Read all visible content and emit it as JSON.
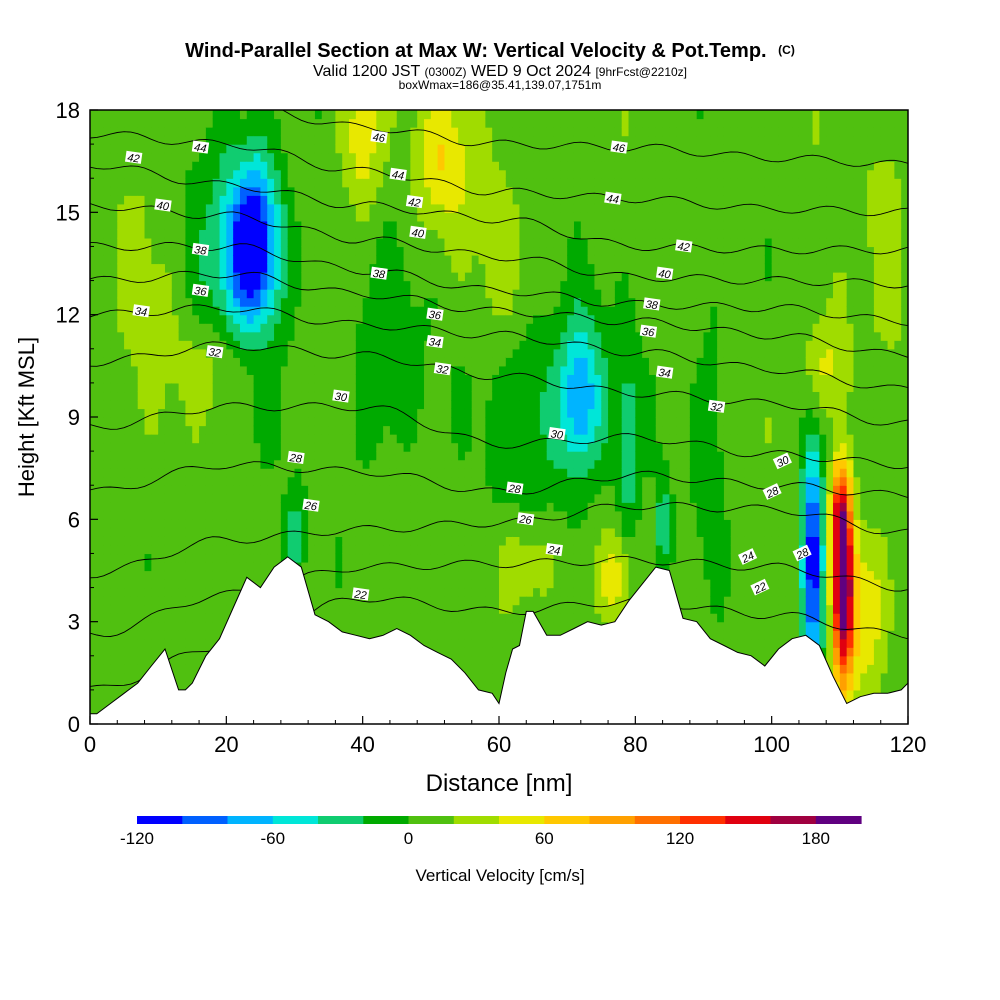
{
  "chart_data": {
    "type": "heatmap",
    "title": "Wind-Parallel Section at Max W: Vertical Velocity & Pot.Temp.",
    "title_mark": "(C)",
    "subtitle_parts": {
      "valid_a": "Valid 1200 JST",
      "valid_utc": "(0300Z)",
      "valid_b": "WED 9 Oct 2024",
      "fcst": "[9hrFcst@2210z]"
    },
    "subtitle2": "boxWmax=186@35.41,139.07,1751m",
    "xlabel": "Distance [nm]",
    "ylabel": "Height [Kft MSL]",
    "xlim": [
      0,
      120
    ],
    "ylim": [
      0,
      18
    ],
    "x_ticks": [
      0,
      20,
      40,
      60,
      80,
      100,
      120
    ],
    "y_ticks": [
      0,
      3,
      6,
      9,
      12,
      15,
      18
    ],
    "colorbar": {
      "label": "Vertical Velocity [cm/s]",
      "min": -120,
      "max": 200,
      "step": 20,
      "tick_labels": [
        "-120",
        "-60",
        "0",
        "60",
        "120",
        "180"
      ],
      "tick_values": [
        -120,
        -60,
        0,
        60,
        120,
        180
      ],
      "colors": [
        "#0000ff",
        "#0060ff",
        "#00b4ff",
        "#00e6d8",
        "#10cc70",
        "#00aa00",
        "#50c010",
        "#a0dc00",
        "#e8e800",
        "#ffc800",
        "#ffa000",
        "#ff7000",
        "#ff3000",
        "#e00010",
        "#a00040",
        "#600080"
      ]
    },
    "terrain_profile": {
      "x": [
        0,
        1,
        3,
        5,
        7,
        9,
        11,
        13,
        14,
        15,
        16,
        17,
        19,
        21,
        23,
        25,
        27,
        29,
        31,
        33,
        35,
        37,
        39,
        41,
        43,
        45,
        47,
        49,
        51,
        53,
        55,
        57,
        59,
        60,
        61,
        62,
        63,
        64,
        65,
        67,
        69,
        71,
        73,
        75,
        77,
        79,
        81,
        83,
        85,
        87,
        89,
        91,
        93,
        95,
        97,
        99,
        101,
        103,
        105,
        107,
        109,
        111,
        113,
        115,
        117,
        119,
        120
      ],
      "height_kft": [
        0.3,
        0.3,
        0.6,
        0.9,
        1.2,
        1.7,
        2.2,
        1.0,
        1.0,
        1.2,
        1.6,
        2.0,
        2.5,
        3.4,
        4.3,
        4.0,
        4.6,
        4.9,
        4.6,
        3.2,
        3.0,
        2.7,
        2.6,
        2.5,
        2.6,
        2.8,
        2.6,
        2.3,
        2.1,
        1.9,
        1.5,
        1.0,
        0.9,
        0.6,
        1.5,
        2.2,
        2.3,
        3.3,
        3.3,
        2.6,
        2.6,
        2.8,
        3.0,
        2.9,
        3.0,
        3.6,
        4.1,
        4.6,
        4.5,
        3.1,
        3.0,
        2.5,
        2.3,
        2.1,
        2.0,
        1.7,
        2.2,
        2.5,
        2.6,
        2.3,
        1.4,
        0.6,
        0.8,
        0.9,
        0.9,
        1.0,
        1.2
      ]
    },
    "w_features": [
      {
        "x": 24,
        "y": 14.2,
        "w": -110,
        "sx": 2.6,
        "sy": 1.6
      },
      {
        "x": 22,
        "y": 13.0,
        "w": -50,
        "sx": 4.5,
        "sy": 3.0
      },
      {
        "x": 20,
        "y": 10.5,
        "w": 40,
        "sx": 4.5,
        "sy": 1.2
      },
      {
        "x": 40,
        "y": 17.2,
        "w": 50,
        "sx": 2.0,
        "sy": 1.5
      },
      {
        "x": 52,
        "y": 16.5,
        "w": 45,
        "sx": 3.0,
        "sy": 1.5
      },
      {
        "x": 43,
        "y": 10.5,
        "w": -30,
        "sx": 3.5,
        "sy": 2.2
      },
      {
        "x": 72,
        "y": 9.6,
        "w": -65,
        "sx": 2.0,
        "sy": 1.6
      },
      {
        "x": 68,
        "y": 9.3,
        "w": -35,
        "sx": 6.5,
        "sy": 2.0
      },
      {
        "x": 79,
        "y": 8.0,
        "w": -45,
        "sx": 1.2,
        "sy": 1.8
      },
      {
        "x": 77,
        "y": 4.3,
        "w": 45,
        "sx": 1.6,
        "sy": 0.8
      },
      {
        "x": 64,
        "y": 4.6,
        "w": 30,
        "sx": 3.0,
        "sy": 0.9
      },
      {
        "x": 91,
        "y": 8.7,
        "w": -25,
        "sx": 1.6,
        "sy": 3.0
      },
      {
        "x": 106,
        "y": 4.8,
        "w": -125,
        "sx": 1.2,
        "sy": 2.6
      },
      {
        "x": 110.5,
        "y": 4.0,
        "w": 190,
        "sx": 1.1,
        "sy": 2.0
      },
      {
        "x": 110,
        "y": 6.4,
        "w": 80,
        "sx": 1.0,
        "sy": 1.0
      },
      {
        "x": 114,
        "y": 3.5,
        "w": 45,
        "sx": 2.0,
        "sy": 1.6
      },
      {
        "x": 108,
        "y": 10.5,
        "w": 40,
        "sx": 2.5,
        "sy": 1.2
      },
      {
        "x": 84,
        "y": 5.8,
        "w": -45,
        "sx": 0.8,
        "sy": 1.0
      },
      {
        "x": 30,
        "y": 5.5,
        "w": -40,
        "sx": 1.0,
        "sy": 1.0
      },
      {
        "x": 60,
        "y": 14.0,
        "w": 20,
        "sx": 2.5,
        "sy": 2.0
      },
      {
        "x": 8,
        "y": 13.0,
        "w": 15,
        "sx": 3.0,
        "sy": 3.0
      },
      {
        "x": 117,
        "y": 15.0,
        "w": 20,
        "sx": 2.0,
        "sy": 2.5
      }
    ],
    "theta_contours": [
      {
        "label": "22",
        "x": [
          0,
          20,
          40,
          60,
          80,
          100,
          120
        ],
        "y": [
          1.0,
          2.3,
          3.7,
          3.3,
          3.6,
          3.2,
          2.6
        ]
      },
      {
        "label": "24",
        "x": [
          0,
          20,
          40,
          60,
          80,
          100,
          120
        ],
        "y": [
          2.6,
          3.8,
          4.6,
          4.7,
          4.8,
          4.6,
          4.0
        ]
      },
      {
        "label": "26",
        "x": [
          0,
          20,
          40,
          60,
          80,
          100,
          120
        ],
        "y": [
          4.4,
          5.4,
          5.7,
          5.9,
          6.4,
          6.3,
          5.6
        ]
      },
      {
        "label": "28",
        "x": [
          0,
          20,
          40,
          60,
          80,
          100,
          120
        ],
        "y": [
          6.8,
          7.6,
          7.4,
          6.8,
          7.3,
          7.0,
          6.7
        ]
      },
      {
        "label": "30",
        "x": [
          0,
          20,
          40,
          60,
          80,
          100,
          120
        ],
        "y": [
          8.7,
          9.3,
          9.3,
          8.2,
          8.4,
          7.9,
          7.6
        ]
      },
      {
        "label": "32",
        "x": [
          0,
          20,
          40,
          60,
          80,
          100,
          120
        ],
        "y": [
          10.6,
          11.1,
          10.8,
          10.2,
          9.7,
          9.4,
          8.8
        ]
      },
      {
        "label": "34",
        "x": [
          0,
          20,
          40,
          60,
          80,
          100,
          120
        ],
        "y": [
          12.0,
          12.2,
          11.7,
          11.4,
          10.9,
          10.4,
          9.8
        ]
      },
      {
        "label": "36",
        "x": [
          0,
          20,
          40,
          60,
          80,
          100,
          120
        ],
        "y": [
          13.0,
          13.2,
          12.6,
          12.1,
          11.8,
          11.4,
          10.8
        ]
      },
      {
        "label": "38",
        "x": [
          0,
          20,
          40,
          60,
          80,
          100,
          120
        ],
        "y": [
          14.0,
          14.0,
          13.3,
          12.7,
          12.3,
          12.2,
          11.8
        ]
      },
      {
        "label": "40",
        "x": [
          0,
          20,
          40,
          60,
          80,
          100,
          120
        ],
        "y": [
          15.2,
          14.9,
          14.2,
          13.7,
          13.1,
          13.0,
          12.9
        ]
      },
      {
        "label": "42",
        "x": [
          0,
          20,
          40,
          60,
          80,
          100,
          120
        ],
        "y": [
          16.4,
          15.8,
          15.2,
          14.8,
          14.0,
          13.9,
          13.9
        ]
      },
      {
        "label": "44",
        "x": [
          0,
          20,
          40,
          60,
          80,
          100,
          120
        ],
        "y": [
          17.3,
          17.0,
          16.2,
          15.6,
          15.4,
          15.1,
          15.0
        ]
      },
      {
        "label": "46",
        "x": [
          0,
          20,
          40,
          60,
          80,
          100,
          120
        ],
        "y": [
          18.5,
          18.2,
          17.5,
          17.0,
          16.9,
          16.6,
          16.4
        ]
      }
    ],
    "contour_labels": [
      {
        "text": "42",
        "x": 6.4,
        "y": 16.6
      },
      {
        "text": "44",
        "x": 16.2,
        "y": 16.9
      },
      {
        "text": "40",
        "x": 10.7,
        "y": 15.2
      },
      {
        "text": "38",
        "x": 16.2,
        "y": 13.9
      },
      {
        "text": "36",
        "x": 16.2,
        "y": 12.7
      },
      {
        "text": "34",
        "x": 7.5,
        "y": 12.1
      },
      {
        "text": "32",
        "x": 18.3,
        "y": 10.9
      },
      {
        "text": "46",
        "x": 42.4,
        "y": 17.2
      },
      {
        "text": "44",
        "x": 45.2,
        "y": 16.1
      },
      {
        "text": "42",
        "x": 47.6,
        "y": 15.3
      },
      {
        "text": "40",
        "x": 48.1,
        "y": 14.4
      },
      {
        "text": "38",
        "x": 42.4,
        "y": 13.2
      },
      {
        "text": "36",
        "x": 50.6,
        "y": 12.0
      },
      {
        "text": "34",
        "x": 50.6,
        "y": 11.2
      },
      {
        "text": "32",
        "x": 51.7,
        "y": 10.4
      },
      {
        "text": "30",
        "x": 36.8,
        "y": 9.6
      },
      {
        "text": "28",
        "x": 30.2,
        "y": 7.8
      },
      {
        "text": "26",
        "x": 32.4,
        "y": 6.4
      },
      {
        "text": "22",
        "x": 39.7,
        "y": 3.8
      },
      {
        "text": "46",
        "x": 77.6,
        "y": 16.9
      },
      {
        "text": "44",
        "x": 76.7,
        "y": 15.4
      },
      {
        "text": "42",
        "x": 87.1,
        "y": 14.0
      },
      {
        "text": "40",
        "x": 84.3,
        "y": 13.2
      },
      {
        "text": "38",
        "x": 82.4,
        "y": 12.3
      },
      {
        "text": "36",
        "x": 81.9,
        "y": 11.5
      },
      {
        "text": "34",
        "x": 84.3,
        "y": 10.3
      },
      {
        "text": "32",
        "x": 91.9,
        "y": 9.3
      },
      {
        "text": "30",
        "x": 68.5,
        "y": 8.5
      },
      {
        "text": "28",
        "x": 62.3,
        "y": 6.9
      },
      {
        "text": "26",
        "x": 63.9,
        "y": 6.0
      },
      {
        "text": "24",
        "x": 68.1,
        "y": 5.1
      },
      {
        "text": "30",
        "x": 101.6,
        "y": 7.7
      },
      {
        "text": "28",
        "x": 100.1,
        "y": 6.8
      },
      {
        "text": "24",
        "x": 96.5,
        "y": 4.9
      },
      {
        "text": "22",
        "x": 98.3,
        "y": 4.0
      },
      {
        "text": "28",
        "x": 104.5,
        "y": 5.0
      }
    ]
  }
}
